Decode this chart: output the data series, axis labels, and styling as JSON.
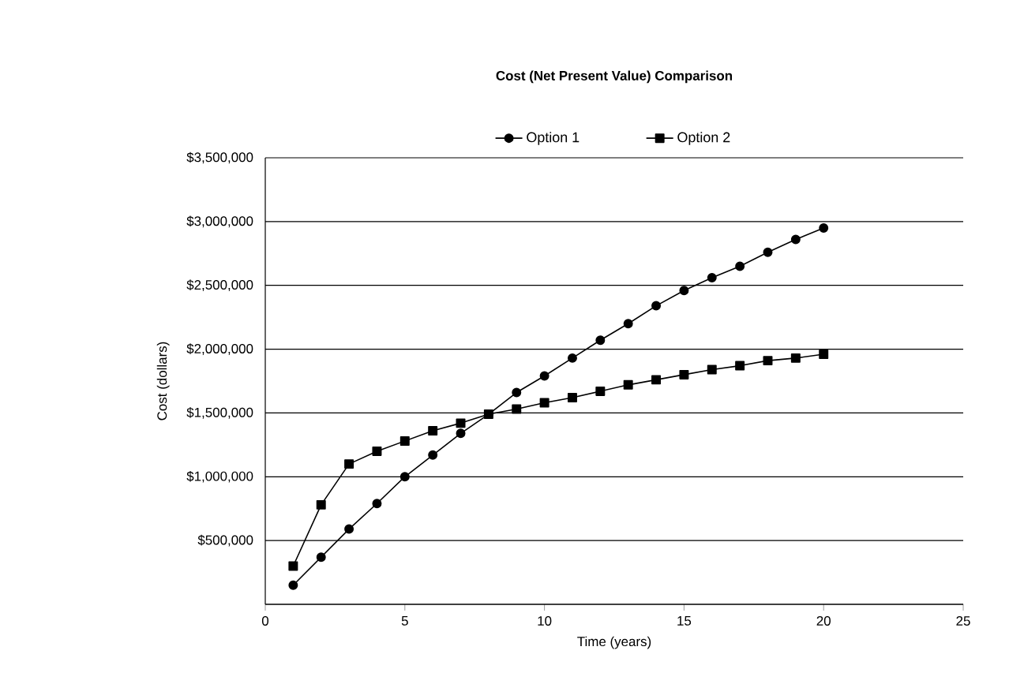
{
  "chart_data": {
    "type": "line",
    "title": "Cost (Net Present Value) Comparison",
    "xlabel": "Time (years)",
    "ylabel": "Cost (dollars)",
    "x": [
      1,
      2,
      3,
      4,
      5,
      6,
      7,
      8,
      9,
      10,
      11,
      12,
      13,
      14,
      15,
      16,
      17,
      18,
      19,
      20
    ],
    "series": [
      {
        "name": "Option 1",
        "color": "#000000",
        "marker": "circle",
        "values": [
          150000,
          370000,
          590000,
          790000,
          1000000,
          1170000,
          1340000,
          1490000,
          1660000,
          1790000,
          1930000,
          2070000,
          2200000,
          2340000,
          2460000,
          2560000,
          2650000,
          2760000,
          2860000,
          2950000
        ]
      },
      {
        "name": "Option 2",
        "color": "#000000",
        "marker": "square",
        "values": [
          300000,
          780000,
          1100000,
          1200000,
          1280000,
          1360000,
          1420000,
          1490000,
          1530000,
          1580000,
          1620000,
          1670000,
          1720000,
          1760000,
          1800000,
          1840000,
          1870000,
          1910000,
          1930000,
          1960000
        ]
      }
    ],
    "xlim": [
      0,
      25
    ],
    "xticks": [
      0,
      5,
      10,
      15,
      20,
      25
    ],
    "ylim": [
      0,
      3500000
    ],
    "yticks": [
      {
        "value": 0,
        "label": null
      },
      {
        "value": 500000,
        "label": "$500,000"
      },
      {
        "value": 1000000,
        "label": "$1,000,000"
      },
      {
        "value": 1500000,
        "label": "$1,500,000"
      },
      {
        "value": 2000000,
        "label": "$2,000,000"
      },
      {
        "value": 2500000,
        "label": "$2,500,000"
      },
      {
        "value": 3000000,
        "label": "$3,000,000"
      },
      {
        "value": 3500000,
        "label": "$3,500,000"
      }
    ],
    "grid": "y",
    "legend": "top",
    "line_style": "solid"
  }
}
